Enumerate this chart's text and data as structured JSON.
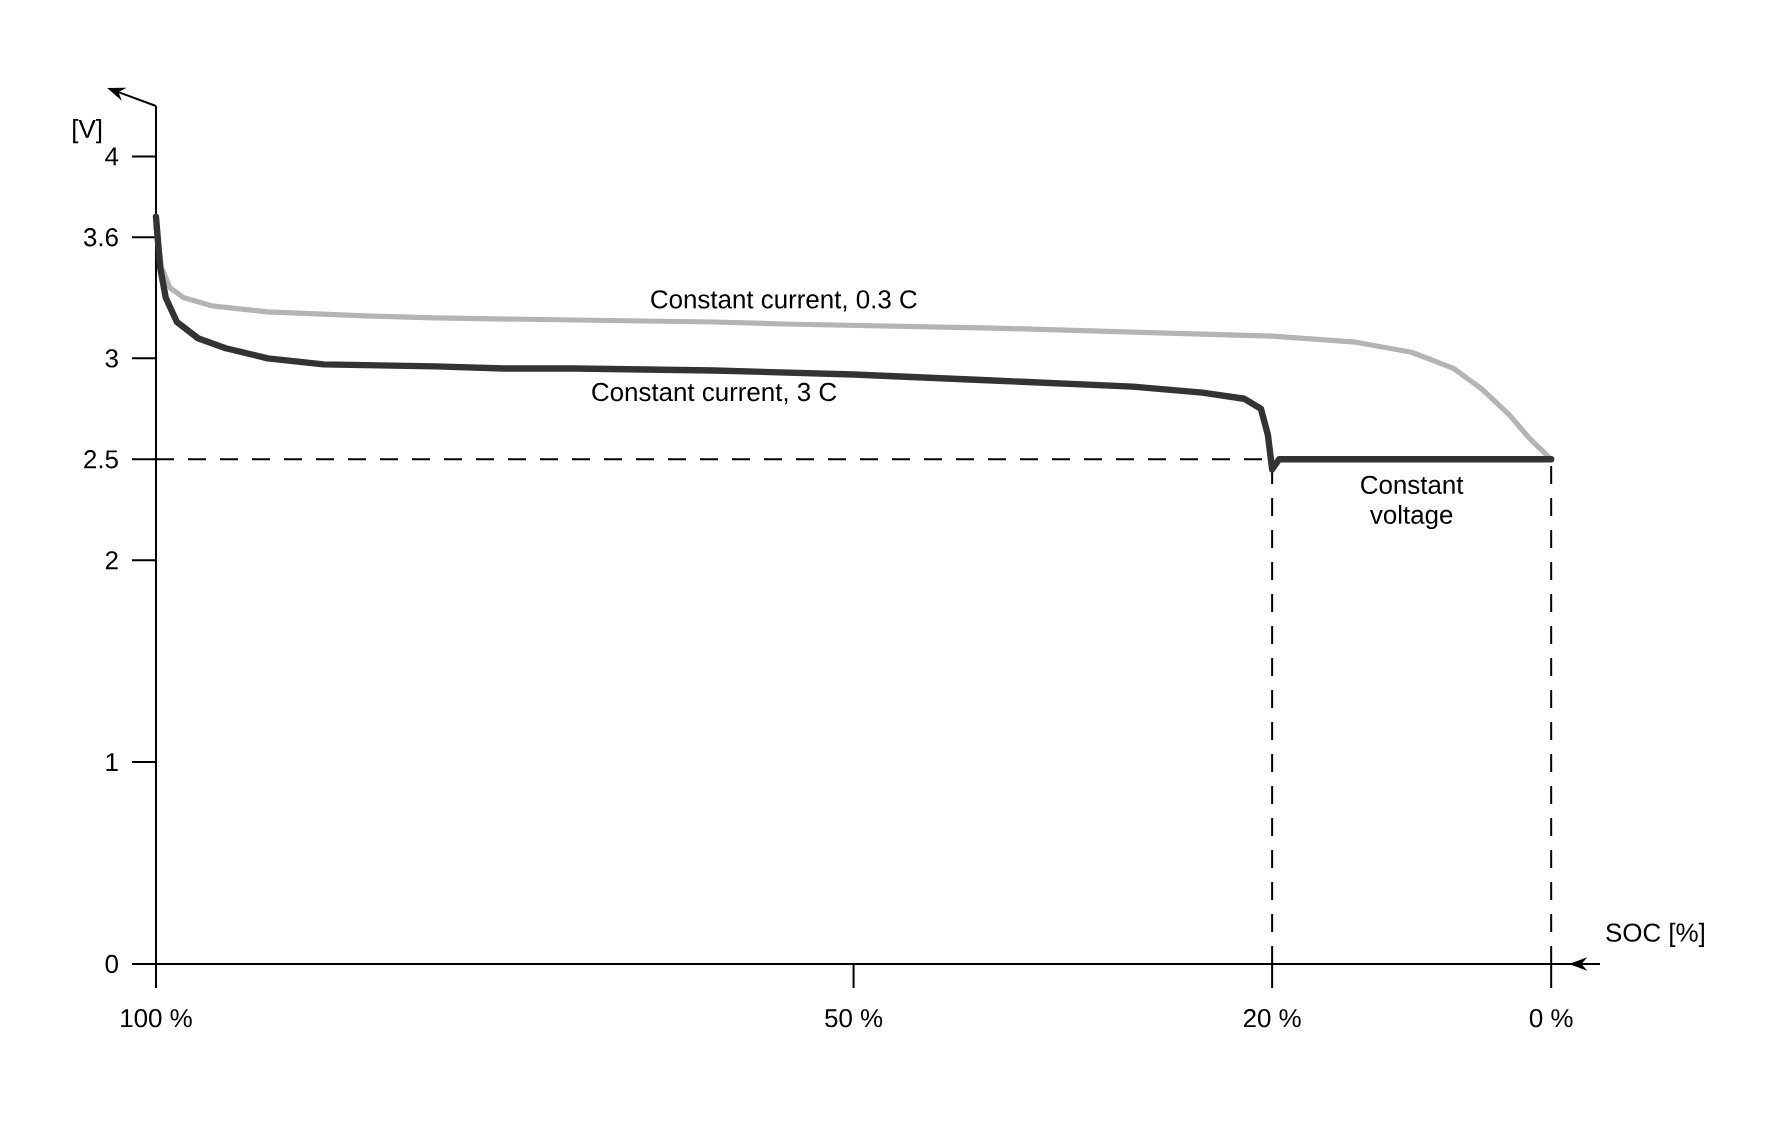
{
  "chart_data": {
    "type": "line",
    "xlabel": "SOC [%]",
    "ylabel": "[V]",
    "xlim": [
      100,
      -3.5
    ],
    "ylim": [
      0,
      4.25
    ],
    "xticks": [
      {
        "value": 100,
        "label": "100 %"
      },
      {
        "value": 50,
        "label": "50 %"
      },
      {
        "value": 20,
        "label": "20 %"
      },
      {
        "value": 0,
        "label": "0 %"
      }
    ],
    "yticks": [
      0,
      1,
      2,
      2.5,
      3,
      3.6,
      4
    ],
    "series": [
      {
        "name": "Constant current, 0.3 C",
        "color": "#b4b4b4",
        "x": [
          100,
          99.6,
          99,
          98,
          96,
          92,
          85,
          80,
          70,
          60,
          55,
          40,
          30,
          20,
          14,
          10,
          7,
          5,
          3,
          1.5,
          0
        ],
        "values": [
          3.65,
          3.45,
          3.35,
          3.3,
          3.26,
          3.23,
          3.21,
          3.2,
          3.19,
          3.18,
          3.17,
          3.15,
          3.13,
          3.11,
          3.08,
          3.03,
          2.95,
          2.85,
          2.72,
          2.6,
          2.5
        ]
      },
      {
        "name": "Constant current, 3 C",
        "color": "#333333",
        "x": [
          100,
          99.7,
          99.3,
          98.5,
          97,
          95,
          92,
          88,
          80,
          75,
          70,
          60,
          50,
          40,
          30,
          25,
          22,
          20.8,
          20.3,
          20,
          19.5,
          10,
          0
        ],
        "values": [
          3.7,
          3.45,
          3.3,
          3.18,
          3.1,
          3.05,
          3.0,
          2.97,
          2.96,
          2.95,
          2.95,
          2.94,
          2.92,
          2.89,
          2.86,
          2.83,
          2.8,
          2.75,
          2.62,
          2.45,
          2.5,
          2.5,
          2.5
        ]
      }
    ],
    "ref_lines": [
      {
        "axis": "y",
        "value": 2.5,
        "line_style": "dashed"
      },
      {
        "axis": "x",
        "value": 20,
        "line_style": "dashed"
      },
      {
        "axis": "x",
        "value": 0,
        "line_style": "dashed"
      }
    ],
    "annotations": [
      {
        "text": "Constant voltage",
        "x": 10,
        "y": 2.5
      }
    ],
    "line_style": "solid",
    "marker": "none"
  }
}
